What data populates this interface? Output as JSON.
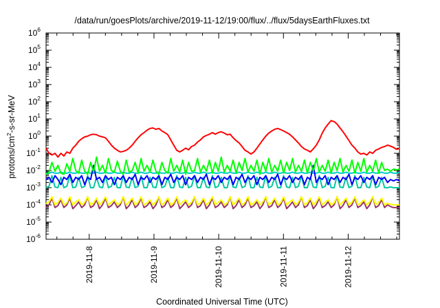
{
  "chart_data": {
    "type": "line",
    "title": "/data/run/goesPlots/archive/2019-11-12/19:00/flux/../flux/5daysEarthFluxes.txt",
    "xlabel": "Coordinated Universal Time (UTC)",
    "ylabel_parts": [
      "protons/cm",
      "2",
      "-s-sr-MeV"
    ],
    "yscale": "log",
    "ylim": [
      1e-06,
      1000000.0
    ],
    "y_ticks": [
      {
        "base": "10",
        "exp": "-6",
        "value": 1e-06
      },
      {
        "base": "10",
        "exp": "-5",
        "value": 1e-05
      },
      {
        "base": "10",
        "exp": "-4",
        "value": 0.0001
      },
      {
        "base": "10",
        "exp": "-3",
        "value": 0.001
      },
      {
        "base": "10",
        "exp": "-2",
        "value": 0.01
      },
      {
        "base": "10",
        "exp": "-1",
        "value": 0.1
      },
      {
        "base": "10",
        "exp": "0",
        "value": 1
      },
      {
        "base": "10",
        "exp": "1",
        "value": 10.0
      },
      {
        "base": "10",
        "exp": "2",
        "value": 100.0
      },
      {
        "base": "10",
        "exp": "3",
        "value": 1000.0
      },
      {
        "base": "10",
        "exp": "4",
        "value": 10000.0
      },
      {
        "base": "10",
        "exp": "5",
        "value": 100000.0
      },
      {
        "base": "10",
        "exp": "6",
        "value": 1000000.0
      }
    ],
    "xlim": [
      "2019-11-07 08:00",
      "2019-11-12 19:00"
    ],
    "x_ticks": [
      "2019-11-8",
      "2019-11-9",
      "2019-11-10",
      "2019-11-11",
      "2019-11-12"
    ],
    "grid": false,
    "series": [
      {
        "color": "#ff0000",
        "values": [
          0.2,
          0.1,
          0.08,
          0.1,
          0.06,
          0.1,
          0.07,
          0.12,
          0.1,
          0.2,
          0.3,
          0.5,
          0.7,
          0.9,
          1,
          1.2,
          1.3,
          1.2,
          1,
          0.9,
          0.8,
          0.5,
          0.3,
          0.2,
          0.15,
          0.12,
          0.13,
          0.15,
          0.2,
          0.3,
          0.5,
          0.8,
          1.2,
          1.6,
          2.2,
          2.8,
          3,
          2.5,
          2.8,
          2,
          1.6,
          1.2,
          0.6,
          0.3,
          0.15,
          0.12,
          0.15,
          0.2,
          0.16,
          0.25,
          0.3,
          0.45,
          0.6,
          0.9,
          1.1,
          1.3,
          1.6,
          1.3,
          1.6,
          1.8,
          1.5,
          1.2,
          1.3,
          0.8,
          0.55,
          0.4,
          0.25,
          0.15,
          0.12,
          0.09,
          0.12,
          0.2,
          0.35,
          0.6,
          1,
          1.5,
          2,
          2.5,
          2.8,
          2.4,
          2,
          1.6,
          1.3,
          0.9,
          0.6,
          0.4,
          0.25,
          0.18,
          0.15,
          0.12,
          0.18,
          0.3,
          0.6,
          1.5,
          3,
          5,
          8,
          7,
          5,
          3,
          1.8,
          1,
          0.55,
          0.3,
          0.2,
          0.12,
          0.09,
          0.1,
          0.08,
          0.12,
          0.1,
          0.15,
          0.18,
          0.22,
          0.25,
          0.3,
          0.26,
          0.22,
          0.17,
          0.19
        ]
      },
      {
        "color": "#00ff00",
        "values": [
          0.006,
          0.008,
          0.03,
          0.009,
          0.02,
          0.007,
          0.006,
          0.025,
          0.009,
          0.05,
          0.01,
          0.007,
          0.04,
          0.009,
          0.006,
          0.03,
          0.008,
          0.06,
          0.009,
          0.02,
          0.007,
          0.05,
          0.01,
          0.008,
          0.035,
          0.009,
          0.006,
          0.04,
          0.008,
          0.01,
          0.03,
          0.007,
          0.05,
          0.009,
          0.02,
          0.008,
          0.04,
          0.009,
          0.006,
          0.03,
          0.01,
          0.007,
          0.05,
          0.009,
          0.02,
          0.008,
          0.04,
          0.006,
          0.03,
          0.009,
          0.01,
          0.05,
          0.008,
          0.02,
          0.009,
          0.04,
          0.007,
          0.03,
          0.009,
          0.06,
          0.008,
          0.02,
          0.009,
          0.04,
          0.007,
          0.03,
          0.01,
          0.05,
          0.008,
          0.02,
          0.009,
          0.04,
          0.006,
          0.03,
          0.009,
          0.05,
          0.008,
          0.02,
          0.009,
          0.04,
          0.007,
          0.03,
          0.01,
          0.05,
          0.008,
          0.02,
          0.009,
          0.04,
          0.007,
          0.03,
          0.009,
          0.05,
          0.008,
          0.02,
          0.009,
          0.04,
          0.007,
          0.03,
          0.01,
          0.05,
          0.008,
          0.02,
          0.009,
          0.04,
          0.007,
          0.03,
          0.009,
          0.05,
          0.008,
          0.02,
          0.009,
          0.04,
          0.007,
          0.03,
          0.01,
          0.012,
          0.009,
          0.012,
          0.011,
          0.012
        ]
      },
      {
        "color": "#00cccc",
        "values": [
          0.007,
          0.007,
          0.008,
          0.007,
          0.007,
          0.008,
          0.007,
          0.007,
          0.008,
          0.007,
          0.007,
          0.008,
          0.007,
          0.007,
          0.008,
          0.007,
          0.007,
          0.008,
          0.007,
          0.007,
          0.008,
          0.007,
          0.007,
          0.008,
          0.007,
          0.007,
          0.008,
          0.007,
          0.007,
          0.008,
          0.007,
          0.007,
          0.008,
          0.007,
          0.007,
          0.008,
          0.007,
          0.007,
          0.008,
          0.007,
          0.007,
          0.008,
          0.007,
          0.007,
          0.008,
          0.007,
          0.007,
          0.008,
          0.007,
          0.007,
          0.008,
          0.007,
          0.007,
          0.008,
          0.007,
          0.007,
          0.008,
          0.007,
          0.007,
          0.008,
          0.007,
          0.007,
          0.008,
          0.007,
          0.007,
          0.008,
          0.007,
          0.007,
          0.008,
          0.007,
          0.007,
          0.008,
          0.007,
          0.007,
          0.008,
          0.007,
          0.007,
          0.008,
          0.007,
          0.007,
          0.008,
          0.007,
          0.007,
          0.008,
          0.007,
          0.007,
          0.008,
          0.007,
          0.007,
          0.008,
          0.007,
          0.007,
          0.008,
          0.007,
          0.007,
          0.008,
          0.007,
          0.007,
          0.008,
          0.007,
          0.007,
          0.008,
          0.007,
          0.007,
          0.008,
          0.007,
          0.007,
          0.008,
          0.007,
          0.007,
          0.008,
          0.007,
          0.007,
          0.008,
          0.007,
          0.007,
          0.008,
          0.007,
          0.007,
          0.008
        ]
      },
      {
        "color": "#00c8a0",
        "values": [
          0.001,
          0.0012,
          0.005,
          0.0011,
          0.001,
          0.004,
          0.001,
          0.0012,
          0.005,
          0.001,
          0.0011,
          0.004,
          0.001,
          0.0012,
          0.005,
          0.001,
          0.001,
          0.004,
          0.0011,
          0.001,
          0.005,
          0.001,
          0.0012,
          0.004,
          0.001,
          0.001,
          0.005,
          0.0011,
          0.001,
          0.004,
          0.001,
          0.0012,
          0.005,
          0.001,
          0.001,
          0.004,
          0.0011,
          0.001,
          0.005,
          0.001,
          0.0012,
          0.004,
          0.001,
          0.001,
          0.005,
          0.0011,
          0.001,
          0.004,
          0.001,
          0.0012,
          0.005,
          0.001,
          0.001,
          0.004,
          0.0011,
          0.001,
          0.005,
          0.001,
          0.0012,
          0.004,
          0.001,
          0.001,
          0.005,
          0.0011,
          0.001,
          0.004,
          0.001,
          0.0012,
          0.005,
          0.001,
          0.001,
          0.004,
          0.0011,
          0.001,
          0.005,
          0.001,
          0.0012,
          0.004,
          0.001,
          0.001,
          0.005,
          0.0011,
          0.001,
          0.004,
          0.001,
          0.0012,
          0.005,
          0.001,
          0.001,
          0.004,
          0.0011,
          0.001,
          0.005,
          0.001,
          0.0012,
          0.004,
          0.001,
          0.001,
          0.005,
          0.0011,
          0.001,
          0.004,
          0.001,
          0.0012,
          0.005,
          0.001,
          0.001,
          0.004,
          0.0011,
          0.001,
          0.005,
          0.001,
          0.0012,
          0.004,
          0.001,
          0.001,
          0.0011,
          0.001,
          0.001,
          0.001
        ]
      },
      {
        "color": "#0000ff",
        "values": [
          0.003,
          0.004,
          0.002,
          0.005,
          0.003,
          0.0015,
          0.004,
          0.003,
          0.006,
          0.002,
          0.004,
          0.003,
          0.005,
          0.0015,
          0.004,
          0.003,
          0.02,
          0.003,
          0.004,
          0.002,
          0.005,
          0.003,
          0.004,
          0.0015,
          0.004,
          0.003,
          0.005,
          0.002,
          0.004,
          0.003,
          0.006,
          0.0015,
          0.004,
          0.003,
          0.005,
          0.002,
          0.004,
          0.003,
          0.005,
          0.0015,
          0.004,
          0.003,
          0.006,
          0.002,
          0.004,
          0.003,
          0.005,
          0.0015,
          0.004,
          0.003,
          0.005,
          0.002,
          0.004,
          0.003,
          0.006,
          0.0015,
          0.004,
          0.003,
          0.005,
          0.002,
          0.004,
          0.003,
          0.005,
          0.0015,
          0.004,
          0.003,
          0.006,
          0.002,
          0.004,
          0.003,
          0.005,
          0.0015,
          0.004,
          0.003,
          0.005,
          0.002,
          0.004,
          0.003,
          0.006,
          0.0015,
          0.004,
          0.003,
          0.005,
          0.002,
          0.004,
          0.003,
          0.005,
          0.0015,
          0.004,
          0.003,
          0.02,
          0.002,
          0.004,
          0.003,
          0.005,
          0.0015,
          0.004,
          0.003,
          0.005,
          0.002,
          0.004,
          0.003,
          0.006,
          0.0015,
          0.004,
          0.003,
          0.005,
          0.002,
          0.004,
          0.003,
          0.005,
          0.0015,
          0.004,
          0.003,
          0.004,
          0.002,
          0.003,
          0.0025,
          0.003,
          0.0025
        ]
      },
      {
        "color": "#ffff00",
        "values": [
          0.00012,
          0.00015,
          0.0003,
          0.0001,
          0.00014,
          0.00025,
          0.0001,
          0.00013,
          0.0003,
          0.0001,
          0.00015,
          0.0002,
          0.0001,
          0.00014,
          0.0003,
          0.0001,
          0.00013,
          0.00025,
          0.0001,
          0.00015,
          0.0003,
          0.0001,
          0.00014,
          0.0002,
          0.0001,
          0.00013,
          0.0003,
          0.0001,
          0.00015,
          0.00025,
          0.0001,
          0.00014,
          0.0003,
          0.0001,
          0.00013,
          0.0002,
          0.0001,
          0.00015,
          0.0003,
          0.0001,
          0.00014,
          0.00025,
          0.0001,
          0.00013,
          0.0003,
          0.0001,
          0.00015,
          0.0002,
          0.0001,
          0.00014,
          0.0003,
          0.0001,
          0.00013,
          0.00025,
          0.0001,
          0.00015,
          0.0003,
          0.0001,
          0.00014,
          0.0002,
          0.0001,
          0.00013,
          0.0003,
          0.0001,
          0.00015,
          0.00025,
          0.0001,
          0.00014,
          0.0003,
          0.0001,
          0.00013,
          0.0002,
          0.0001,
          0.00015,
          0.0003,
          0.0001,
          0.00014,
          0.00025,
          0.0001,
          0.00013,
          0.0003,
          0.0001,
          0.00015,
          0.0002,
          0.0001,
          0.00014,
          0.0003,
          0.0001,
          0.00013,
          0.00025,
          0.0001,
          0.00015,
          0.0003,
          0.0001,
          0.00014,
          0.0002,
          0.0001,
          0.00013,
          0.0003,
          0.0001,
          0.00015,
          0.00025,
          0.0001,
          0.00014,
          0.0003,
          0.0001,
          0.00013,
          0.0002,
          0.0001,
          0.00015,
          0.0003,
          0.0001,
          0.00014,
          0.00025,
          0.0001,
          0.00012,
          0.00011,
          0.0001,
          0.0001,
          0.0001
        ]
      },
      {
        "color": "#993366",
        "values": [
          7e-05,
          0.0001,
          0.00025,
          7e-05,
          9e-05,
          0.0002,
          7e-05,
          0.0001,
          0.00025,
          6e-05,
          9e-05,
          0.00015,
          7e-05,
          0.0001,
          0.0003,
          7e-05,
          9e-05,
          0.0002,
          6e-05,
          0.0001,
          0.00025,
          7e-05,
          9e-05,
          0.00015,
          7e-05,
          0.0001,
          0.0003,
          6e-05,
          9e-05,
          0.0002,
          7e-05,
          0.0001,
          0.00025,
          7e-05,
          9e-05,
          0.00015,
          6e-05,
          0.0001,
          0.0003,
          7e-05,
          9e-05,
          0.0002,
          7e-05,
          0.0001,
          0.00025,
          6e-05,
          9e-05,
          0.00015,
          7e-05,
          0.0001,
          0.0003,
          7e-05,
          9e-05,
          0.0002,
          6e-05,
          0.0001,
          0.00025,
          7e-05,
          9e-05,
          0.00015,
          7e-05,
          0.0001,
          0.0003,
          6e-05,
          9e-05,
          0.0002,
          7e-05,
          0.0001,
          0.00025,
          7e-05,
          9e-05,
          0.00015,
          6e-05,
          0.0001,
          0.0003,
          7e-05,
          9e-05,
          0.0002,
          7e-05,
          0.0001,
          0.00025,
          6e-05,
          9e-05,
          0.00015,
          7e-05,
          0.0001,
          0.0003,
          7e-05,
          9e-05,
          0.0002,
          6e-05,
          0.0001,
          0.00025,
          7e-05,
          9e-05,
          0.00015,
          7e-05,
          0.0001,
          0.0003,
          6e-05,
          9e-05,
          0.0002,
          7e-05,
          0.0001,
          0.00025,
          7e-05,
          9e-05,
          0.00015,
          6e-05,
          0.0001,
          0.0003,
          7e-05,
          9e-05,
          0.0002,
          7e-05,
          0.0001,
          8e-05,
          7e-05,
          7e-05,
          7e-05
        ]
      }
    ]
  }
}
